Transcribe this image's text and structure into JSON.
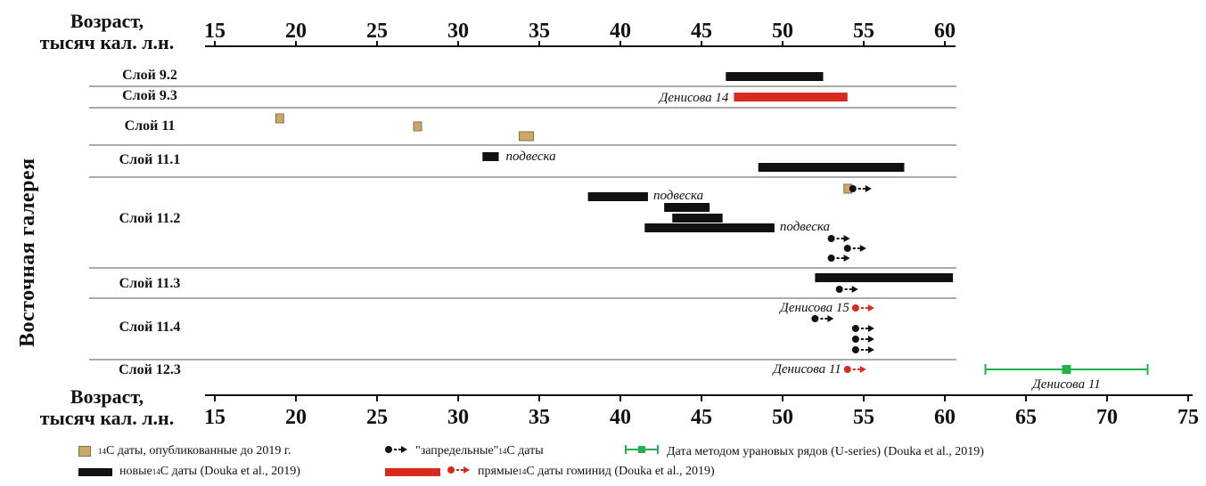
{
  "axis_title": {
    "line1": "Возраст,",
    "line2": "тысяч кал. л.н."
  },
  "side_label": "Восточная галерея",
  "chart_data": {
    "type": "range",
    "top_axis_ticks": [
      15,
      20,
      25,
      30,
      35,
      40,
      45,
      50,
      55,
      60
    ],
    "bottom_axis_ticks": [
      15,
      20,
      25,
      30,
      35,
      40,
      45,
      50,
      55,
      60,
      65,
      70,
      75
    ],
    "xlim": [
      15,
      75
    ],
    "rows": [
      {
        "layer": "Слой 9.2",
        "new_dates": [
          [
            46.5,
            52.5
          ]
        ]
      },
      {
        "layer": "Слой 9.3",
        "hominin_dates": [
          {
            "range": [
              47,
              54
            ],
            "label": "Денисова 14"
          }
        ]
      },
      {
        "layer": "Слой 11",
        "published_dates": [
          19,
          27.5,
          34.2
        ]
      },
      {
        "layer": "Слой 11.1",
        "new_dates": [
          [
            31.5,
            32.5,
            "подвеска"
          ],
          [
            48.5,
            57.5
          ]
        ]
      },
      {
        "layer": "Слой 11.2",
        "published_infinite": [
          54
        ],
        "new_dates": [
          [
            38,
            41.7,
            "подвеска"
          ],
          [
            42.7,
            45.5
          ],
          [
            43.2,
            46.3
          ],
          [
            41.5,
            49.5,
            "подвеска"
          ]
        ],
        "infinite": [
          53,
          54,
          53
        ]
      },
      {
        "layer": "Слой 11.3",
        "new_dates": [
          [
            52,
            60.5
          ]
        ],
        "infinite": [
          53.5
        ]
      },
      {
        "layer": "Слой 11.4",
        "hominin_infinite": [
          {
            "value": 54.5,
            "label": "Денисова 15"
          }
        ],
        "infinite": [
          52,
          54.5,
          54.5,
          54.5
        ]
      },
      {
        "layer": "Слой 12.3",
        "hominin_infinite": [
          {
            "value": 54,
            "label": "Денисова 11"
          }
        ],
        "u_series": {
          "value": 67.5,
          "range": [
            62.5,
            72.5
          ],
          "label": "Денисова 11"
        }
      }
    ],
    "legend": [
      {
        "key": "published",
        "pre": "14",
        "text": "С даты, опубликованные до 2019 г."
      },
      {
        "key": "infinite",
        "pre": "\"запредельные\" ",
        "sup": "14",
        "text": "С даты"
      },
      {
        "key": "useries",
        "text": "Дата методом урановых рядов (U-series) (Douka et al., 2019)"
      },
      {
        "key": "new",
        "pre": "новые ",
        "sup": "14",
        "text": "С даты (Douka et al., 2019)"
      },
      {
        "key": "hominin",
        "pre": "прямые ",
        "sup": "14",
        "text": "С даты гоминид (Douka et al., 2019)"
      }
    ],
    "colors": {
      "new": "#111111",
      "hominin": "#d62b1e",
      "published": "#c9a86a",
      "useries": "#22b24c"
    }
  }
}
